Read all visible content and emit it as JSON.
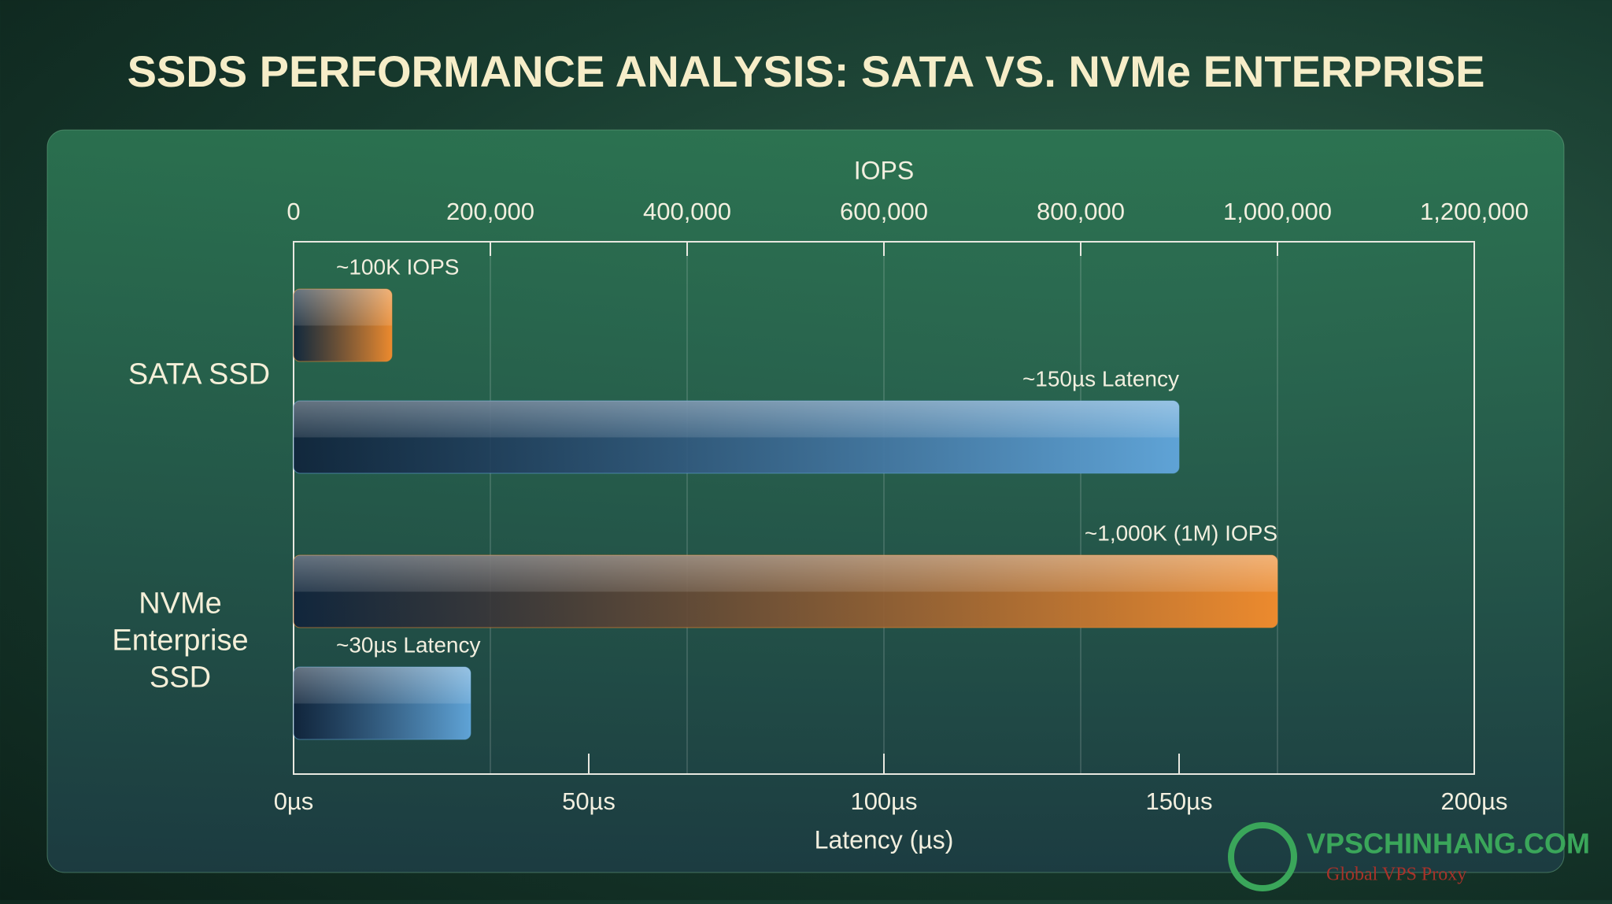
{
  "chart_data": {
    "type": "bar",
    "orientation": "horizontal",
    "title": "SSDS PERFORMANCE ANALYSIS: SATA VS. NVMe ENTERPRISE",
    "categories": [
      "SATA SSD",
      "NVMe Enterprise SSD"
    ],
    "series": [
      {
        "color": "#ec8a2e",
        "axis": "x",
        "values": [
          100000,
          1000000
        ],
        "value_labels": [
          "~100K IOPS",
          "~1,000K (1M) IOPS"
        ]
      },
      {
        "color": "#5fa3d6",
        "axis": "x2",
        "values": [
          150,
          30
        ],
        "value_labels": [
          "~150µs Latency",
          "~30µs Latency"
        ]
      }
    ],
    "xlabel": "IOPS",
    "xlim": [
      0,
      1200000
    ],
    "xticks": [
      0,
      {
        "value": 200000,
        "label": "200,000"
      },
      {
        "value": 400000,
        "label": "400,000"
      },
      {
        "value": 600000,
        "label": "600,000"
      },
      {
        "value": 800000,
        "label": "800,000"
      },
      {
        "value": 1000000,
        "label": "1,000,000"
      },
      {
        "value": 1200000,
        "label": "1,200,000"
      }
    ],
    "x2label": "Latency (µs)",
    "x2lim": [
      0,
      200
    ],
    "x2ticks": [
      {
        "value": 0,
        "label": "0µs"
      },
      {
        "value": 50,
        "label": "50µs"
      },
      {
        "value": 100,
        "label": "100µs"
      },
      {
        "value": 150,
        "label": "150µs"
      },
      {
        "value": 200,
        "label": "200µs"
      }
    ],
    "grid": true
  },
  "watermark": {
    "title": "VPSCHINHANG.COM",
    "subtitle": "Global VPS Proxy"
  }
}
